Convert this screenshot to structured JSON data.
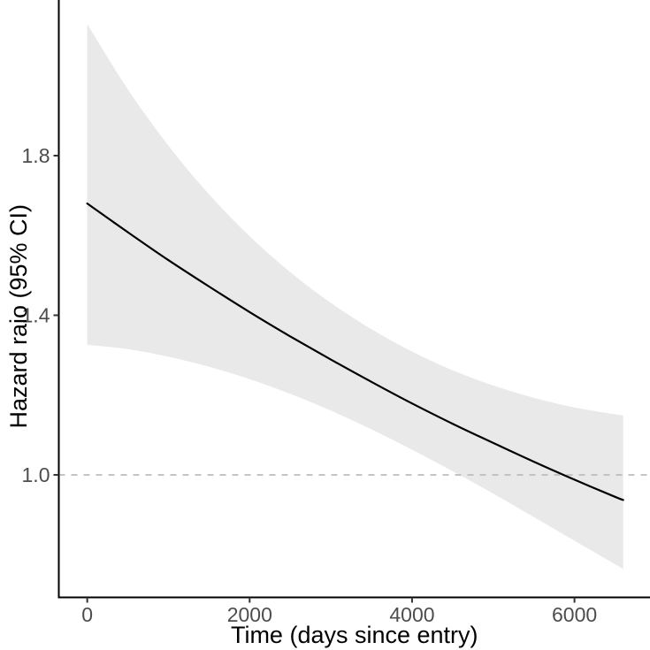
{
  "figure": {
    "description": "Hazard ratio over time with 95% confidence band",
    "background": "#ffffff"
  },
  "chart_data": {
    "type": "line",
    "title": "",
    "xlabel": "Time (days since entry)",
    "ylabel": "Hazard raio (95% CI)",
    "xlim": [
      -350,
      6930
    ],
    "ylim": [
      0.693,
      2.19
    ],
    "grid": false,
    "legend": "none",
    "x_ticks": {
      "values": [
        0,
        2000,
        4000,
        6000
      ],
      "labels": [
        "0",
        "2000",
        "4000",
        "6000"
      ]
    },
    "y_ticks": {
      "values": [
        1.0,
        1.4,
        1.8
      ],
      "labels": [
        "1.0",
        "1.4",
        "1.8"
      ]
    },
    "reference_line": {
      "y": 1.0,
      "style": "dashed"
    },
    "x": [
      0,
      500,
      1000,
      1500,
      2000,
      2500,
      3000,
      3500,
      4000,
      4500,
      5000,
      5500,
      6000,
      6500,
      6600
    ],
    "series": [
      {
        "name": "hazard_ratio_fit",
        "values": [
          1.68,
          1.608,
          1.538,
          1.472,
          1.408,
          1.347,
          1.289,
          1.233,
          1.179,
          1.128,
          1.08,
          1.033,
          0.988,
          0.945,
          0.937
        ]
      }
    ],
    "band": {
      "name": "ci_95",
      "upper": [
        2.13,
        1.966,
        1.825,
        1.703,
        1.598,
        1.508,
        1.431,
        1.365,
        1.309,
        1.262,
        1.224,
        1.193,
        1.169,
        1.152,
        1.149
      ],
      "lower": [
        1.326,
        1.315,
        1.296,
        1.271,
        1.24,
        1.203,
        1.161,
        1.114,
        1.063,
        1.009,
        0.953,
        0.894,
        0.835,
        0.776,
        0.764
      ]
    }
  },
  "colors": {
    "curve": "#000000",
    "ci_band": "#e9e9e9",
    "reference_line": "#bcbcbc",
    "axis_line": "#000000",
    "tick_mark": "#333333",
    "tick_text": "#4d4d4d",
    "title_text": "#000000",
    "background": "#ffffff"
  }
}
